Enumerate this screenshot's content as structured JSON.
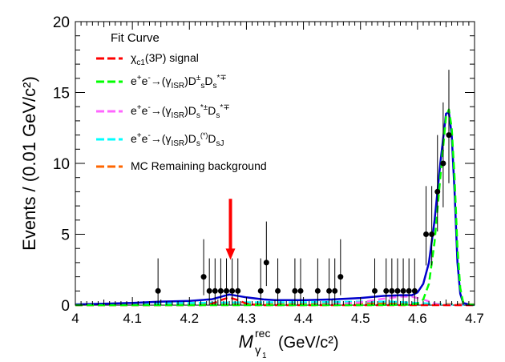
{
  "chart_data": {
    "type": "scatter",
    "xlabel": {
      "main": "M",
      "sup": "rec",
      "sub": "γ",
      "subsub": "1",
      "units": "(GeV/c²)"
    },
    "ylabel": "Events / (0.01 GeV/c²)",
    "xlim": [
      4.0,
      4.7
    ],
    "ylim": [
      0,
      20
    ],
    "x_ticks": [
      "4",
      "4.1",
      "4.2",
      "4.3",
      "4.4",
      "4.5",
      "4.6",
      "4.7"
    ],
    "y_ticks": [
      "0",
      "5",
      "10",
      "15",
      "20"
    ],
    "legend_title": "Fit Curve",
    "legend": [
      {
        "key": "signal",
        "text": "χc1(3P) signal",
        "color": "#ff0000"
      },
      {
        "key": "dsds",
        "text": "e+e-→(γISR)D±sDs*∓",
        "color": "#00ff00"
      },
      {
        "key": "dsstar",
        "text": "e+e-→(γISR)Ds*±Ds*∓",
        "color": "#ff66ff"
      },
      {
        "key": "dsj",
        "text": "e+e-→(γISR)Ds(*)DsJ",
        "color": "#00ffff"
      },
      {
        "key": "remaining",
        "text": "MC Remaining background",
        "color": "#ff6600"
      }
    ],
    "total_fit_color": "#0000cc",
    "arrow": {
      "x": 4.272,
      "y_top": 7.5,
      "y_bottom": 3.2,
      "color": "#ff0000"
    },
    "data_points": [
      {
        "x": 4.145,
        "y": 1,
        "lo": 1,
        "hi": 2.3
      },
      {
        "x": 4.225,
        "y": 2,
        "lo": 1.3,
        "hi": 2.65
      },
      {
        "x": 4.235,
        "y": 1,
        "lo": 1,
        "hi": 2.3
      },
      {
        "x": 4.245,
        "y": 1,
        "lo": 1,
        "hi": 2.3
      },
      {
        "x": 4.255,
        "y": 1,
        "lo": 1,
        "hi": 2.3
      },
      {
        "x": 4.265,
        "y": 1,
        "lo": 1,
        "hi": 2.3
      },
      {
        "x": 4.275,
        "y": 1,
        "lo": 1,
        "hi": 2.3
      },
      {
        "x": 4.285,
        "y": 1,
        "lo": 1,
        "hi": 2.3
      },
      {
        "x": 4.325,
        "y": 1,
        "lo": 1,
        "hi": 2.3
      },
      {
        "x": 4.335,
        "y": 3,
        "lo": 1.65,
        "hi": 2.9
      },
      {
        "x": 4.355,
        "y": 1,
        "lo": 1,
        "hi": 2.3
      },
      {
        "x": 4.385,
        "y": 1,
        "lo": 1,
        "hi": 2.3
      },
      {
        "x": 4.395,
        "y": 1,
        "lo": 1,
        "hi": 2.3
      },
      {
        "x": 4.425,
        "y": 1,
        "lo": 1,
        "hi": 2.3
      },
      {
        "x": 4.445,
        "y": 1,
        "lo": 1,
        "hi": 2.3
      },
      {
        "x": 4.455,
        "y": 1,
        "lo": 1,
        "hi": 2.3
      },
      {
        "x": 4.465,
        "y": 2,
        "lo": 1.3,
        "hi": 2.65
      },
      {
        "x": 4.525,
        "y": 1,
        "lo": 1,
        "hi": 2.3
      },
      {
        "x": 4.545,
        "y": 1,
        "lo": 1,
        "hi": 2.3
      },
      {
        "x": 4.555,
        "y": 1,
        "lo": 1,
        "hi": 2.3
      },
      {
        "x": 4.565,
        "y": 1,
        "lo": 1,
        "hi": 2.3
      },
      {
        "x": 4.575,
        "y": 1,
        "lo": 1,
        "hi": 2.3
      },
      {
        "x": 4.585,
        "y": 1,
        "lo": 1,
        "hi": 2.3
      },
      {
        "x": 4.595,
        "y": 1,
        "lo": 1,
        "hi": 2.3
      },
      {
        "x": 4.615,
        "y": 5,
        "lo": 2.2,
        "hi": 3.4
      },
      {
        "x": 4.625,
        "y": 5,
        "lo": 2.2,
        "hi": 3.4
      },
      {
        "x": 4.635,
        "y": 8,
        "lo": 2.8,
        "hi": 4.0
      },
      {
        "x": 4.645,
        "y": 10,
        "lo": 3.1,
        "hi": 4.3
      },
      {
        "x": 4.655,
        "y": 12,
        "lo": 3.4,
        "hi": 4.6
      }
    ],
    "total_curve": [
      [
        4.0,
        0.05
      ],
      [
        4.05,
        0.1
      ],
      [
        4.1,
        0.15
      ],
      [
        4.15,
        0.25
      ],
      [
        4.2,
        0.3
      ],
      [
        4.24,
        0.42
      ],
      [
        4.27,
        0.75
      ],
      [
        4.3,
        0.55
      ],
      [
        4.33,
        0.4
      ],
      [
        4.35,
        0.35
      ],
      [
        4.4,
        0.35
      ],
      [
        4.45,
        0.4
      ],
      [
        4.5,
        0.5
      ],
      [
        4.54,
        0.65
      ],
      [
        4.57,
        0.7
      ],
      [
        4.59,
        0.7
      ],
      [
        4.6,
        0.9
      ],
      [
        4.61,
        1.5
      ],
      [
        4.62,
        3
      ],
      [
        4.63,
        6
      ],
      [
        4.64,
        10
      ],
      [
        4.65,
        13.5
      ],
      [
        4.655,
        13.6
      ],
      [
        4.66,
        12
      ],
      [
        4.665,
        8
      ],
      [
        4.67,
        3
      ],
      [
        4.675,
        0.8
      ],
      [
        4.68,
        0.15
      ],
      [
        4.69,
        0.05
      ],
      [
        4.7,
        0.03
      ]
    ],
    "dsds_curve": [
      [
        4.0,
        0
      ],
      [
        4.5,
        0
      ],
      [
        4.58,
        0.02
      ],
      [
        4.6,
        0.1
      ],
      [
        4.61,
        0.4
      ],
      [
        4.62,
        1.5
      ],
      [
        4.63,
        4.5
      ],
      [
        4.64,
        9
      ],
      [
        4.65,
        13.3
      ],
      [
        4.655,
        13.8
      ],
      [
        4.66,
        12.5
      ],
      [
        4.665,
        9
      ],
      [
        4.67,
        4
      ],
      [
        4.675,
        1.2
      ],
      [
        4.68,
        0.2
      ],
      [
        4.69,
        0.05
      ],
      [
        4.7,
        0.02
      ]
    ],
    "dsstar_curve": [
      [
        4.0,
        0
      ],
      [
        4.4,
        0
      ],
      [
        4.45,
        0.05
      ],
      [
        4.5,
        0.2
      ],
      [
        4.54,
        0.45
      ],
      [
        4.57,
        0.6
      ],
      [
        4.59,
        0.6
      ],
      [
        4.61,
        0.4
      ],
      [
        4.625,
        0.2
      ],
      [
        4.635,
        0.05
      ],
      [
        4.65,
        0
      ],
      [
        4.7,
        0
      ]
    ],
    "dsj_curve": [
      [
        4.0,
        0
      ],
      [
        4.05,
        0.05
      ],
      [
        4.1,
        0.1
      ],
      [
        4.2,
        0.15
      ],
      [
        4.3,
        0.2
      ],
      [
        4.4,
        0.2
      ],
      [
        4.5,
        0.25
      ],
      [
        4.55,
        0.25
      ],
      [
        4.6,
        0.15
      ],
      [
        4.65,
        0.05
      ],
      [
        4.7,
        0
      ]
    ],
    "remaining_curve": [
      [
        4.0,
        0.03
      ],
      [
        4.2,
        0.05
      ],
      [
        4.3,
        0.1
      ],
      [
        4.5,
        0.15
      ],
      [
        4.6,
        0.1
      ],
      [
        4.7,
        0.05
      ]
    ],
    "signal_curve": [
      [
        4.0,
        0
      ],
      [
        4.22,
        0
      ],
      [
        4.24,
        0.1
      ],
      [
        4.255,
        0.35
      ],
      [
        4.27,
        0.55
      ],
      [
        4.285,
        0.35
      ],
      [
        4.3,
        0.1
      ],
      [
        4.32,
        0
      ],
      [
        4.7,
        0
      ]
    ]
  }
}
